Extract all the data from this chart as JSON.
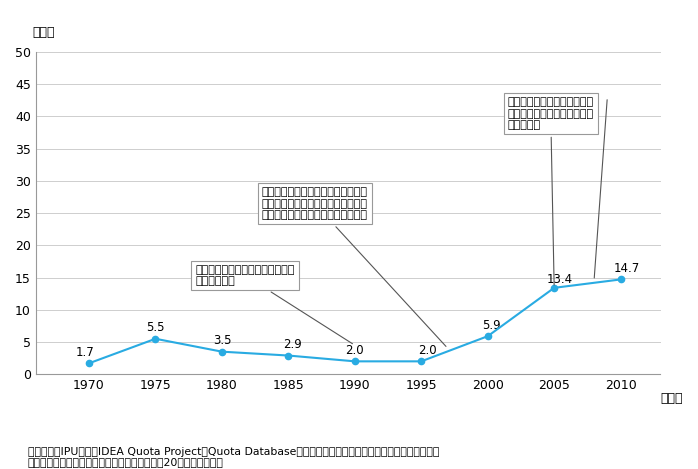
{
  "xlabel_suffix": "（年）",
  "ylabel": "（％）",
  "x": [
    1970,
    1975,
    1980,
    1985,
    1990,
    1995,
    2000,
    2005,
    2010
  ],
  "y": [
    1.7,
    5.5,
    3.5,
    2.9,
    2.0,
    2.0,
    5.9,
    13.4,
    14.7
  ],
  "labels": [
    "1.7",
    "5.5",
    "3.5",
    "2.9",
    "2.0",
    "2.0",
    "5.9",
    "13.4",
    "14.7"
  ],
  "line_color": "#29ABE2",
  "ylim": [
    0,
    50
  ],
  "yticks": [
    0,
    5,
    10,
    15,
    20,
    25,
    30,
    35,
    40,
    45,
    50
  ],
  "xticks": [
    1970,
    1975,
    1980,
    1985,
    1990,
    1995,
    2000,
    2005,
    2010
  ],
  "ann1_text": "比例代表候補におけるクオータ制\nを法律で規定",
  "ann2_text": "法律による小選挙区候補者における\nクオータ制の導入。割当以上の女性\n候補者を掛げた政党に補助金を支給",
  "ann3_text": "法改正により比例代表候補の\n奇数順位を女性とするクオー\nタ制を導入",
  "note_line1": "（備考）　IPU資料，IDEA Quota Project『Quota Database』，内閣府『諸外国における政策・方鷑決定過程",
  "note_line2": "　　　　への女性の参画に関する調査』（平成20年）より作成。",
  "bg_color": "#ffffff",
  "grid_color": "#bbbbbb"
}
